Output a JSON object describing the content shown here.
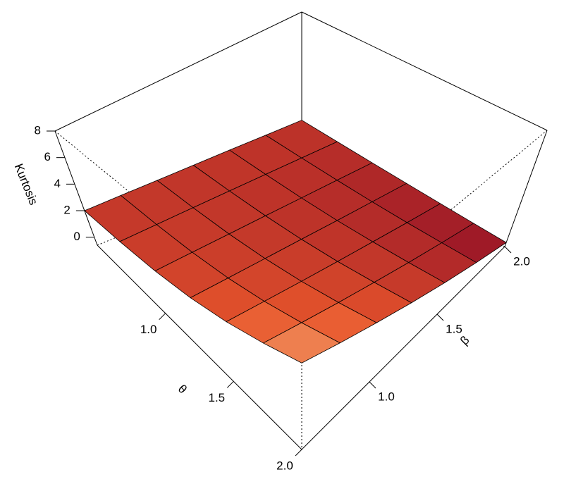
{
  "chart_data": {
    "type": "surface",
    "xlabel": "θ",
    "ylabel": "β",
    "zlabel": "Kurtosis",
    "x": [
      0.5,
      0.75,
      1.0,
      1.25,
      1.5,
      1.75,
      2.0
    ],
    "y": [
      0.5,
      0.75,
      1.0,
      1.25,
      1.5,
      1.75,
      2.0
    ],
    "z": [
      [
        2,
        1.97,
        1.93,
        1.9,
        1.87,
        1.83,
        1.8
      ],
      [
        2.23,
        2.1,
        1.97,
        1.84,
        1.71,
        1.58,
        1.45
      ],
      [
        2.57,
        2.33,
        2.08,
        1.84,
        1.59,
        1.35,
        1.1
      ],
      [
        3.1,
        2.71,
        2.32,
        1.93,
        1.53,
        1.14,
        0.75
      ],
      [
        3.84,
        3.27,
        2.69,
        2.12,
        1.55,
        0.97,
        0.4
      ],
      [
        4.77,
        3.98,
        3.19,
        2.41,
        1.62,
        0.84,
        0.05
      ],
      [
        5.8,
        4.78,
        3.77,
        2.75,
        1.73,
        0.72,
        -0.3
      ]
    ],
    "xlim": [
      0.5,
      2.0
    ],
    "ylim": [
      0.5,
      2.0
    ],
    "zlim": [
      -0.6,
      8
    ],
    "xticks": [
      {
        "value": 1,
        "label": "1.0"
      },
      {
        "value": 1.5,
        "label": "1.5"
      },
      {
        "value": 2,
        "label": "2.0"
      }
    ],
    "yticks": [
      {
        "value": 1,
        "label": "1.0"
      },
      {
        "value": 1.5,
        "label": "1.5"
      },
      {
        "value": 2,
        "label": "2.0"
      }
    ],
    "zticks": [
      0,
      2,
      4,
      6,
      8
    ],
    "color_scale": [
      "#8b0a26",
      "#e8562c",
      "#fff3b2"
    ]
  }
}
